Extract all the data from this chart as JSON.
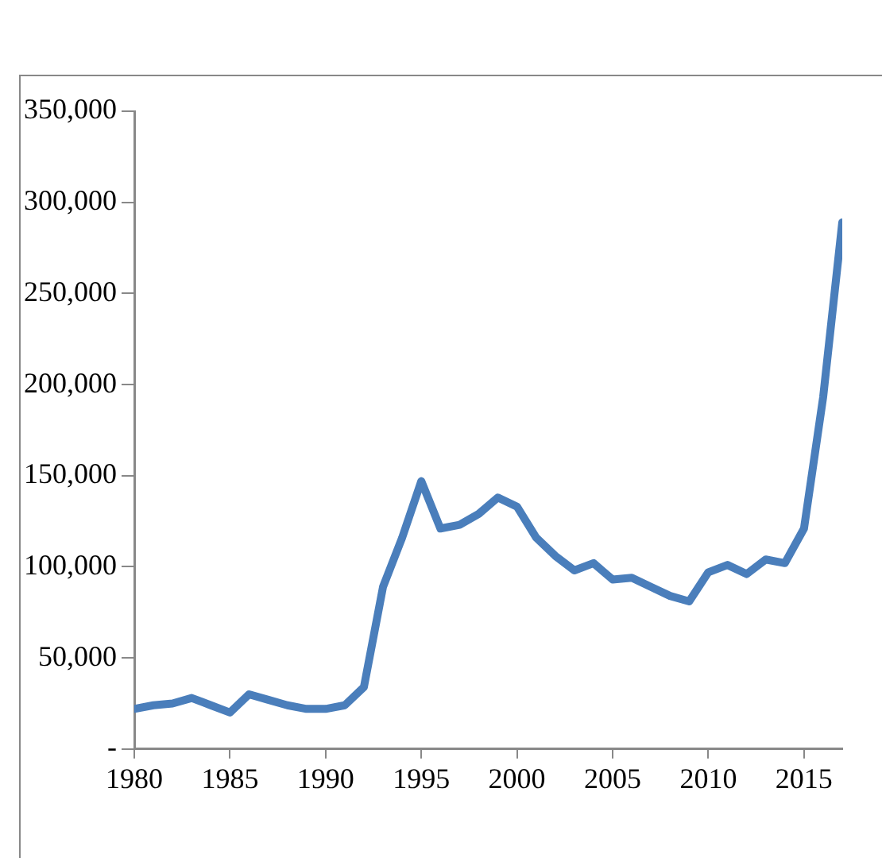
{
  "chart_data": {
    "type": "line",
    "x": [
      1980,
      1981,
      1982,
      1983,
      1984,
      1985,
      1986,
      1987,
      1988,
      1989,
      1990,
      1991,
      1992,
      1993,
      1994,
      1995,
      1996,
      1997,
      1998,
      1999,
      2000,
      2001,
      2002,
      2003,
      2004,
      2005,
      2006,
      2007,
      2008,
      2009,
      2010,
      2011,
      2012,
      2013,
      2014,
      2015,
      2016,
      2017
    ],
    "series": [
      {
        "color": "#4a7ebb",
        "values": [
          22000,
          24000,
          25000,
          28000,
          24000,
          20000,
          30000,
          27000,
          24000,
          22000,
          22000,
          24000,
          34000,
          89000,
          116000,
          147000,
          121000,
          123000,
          129000,
          138000,
          133000,
          116000,
          106000,
          98000,
          102000,
          93000,
          94000,
          89000,
          84000,
          81000,
          97000,
          101000,
          96000,
          104000,
          102000,
          121000,
          193000,
          289000
        ]
      }
    ],
    "xlim": [
      1980,
      2017
    ],
    "xticks": [
      1980,
      1985,
      1990,
      1995,
      2000,
      2005,
      2010,
      2015
    ],
    "ylim": [
      0,
      350000
    ],
    "yticks": [
      {
        "value": 0,
        "label": "-"
      },
      {
        "value": 50000,
        "label": "50,000"
      },
      {
        "value": 100000,
        "label": "100,000"
      },
      {
        "value": 150000,
        "label": "150,000"
      },
      {
        "value": 200000,
        "label": "200,000"
      },
      {
        "value": 250000,
        "label": "250,000"
      },
      {
        "value": 300000,
        "label": "300,000"
      },
      {
        "value": 350000,
        "label": "350,000"
      }
    ],
    "grid": false,
    "legend": false,
    "marker": "none",
    "line_style": "solid"
  }
}
